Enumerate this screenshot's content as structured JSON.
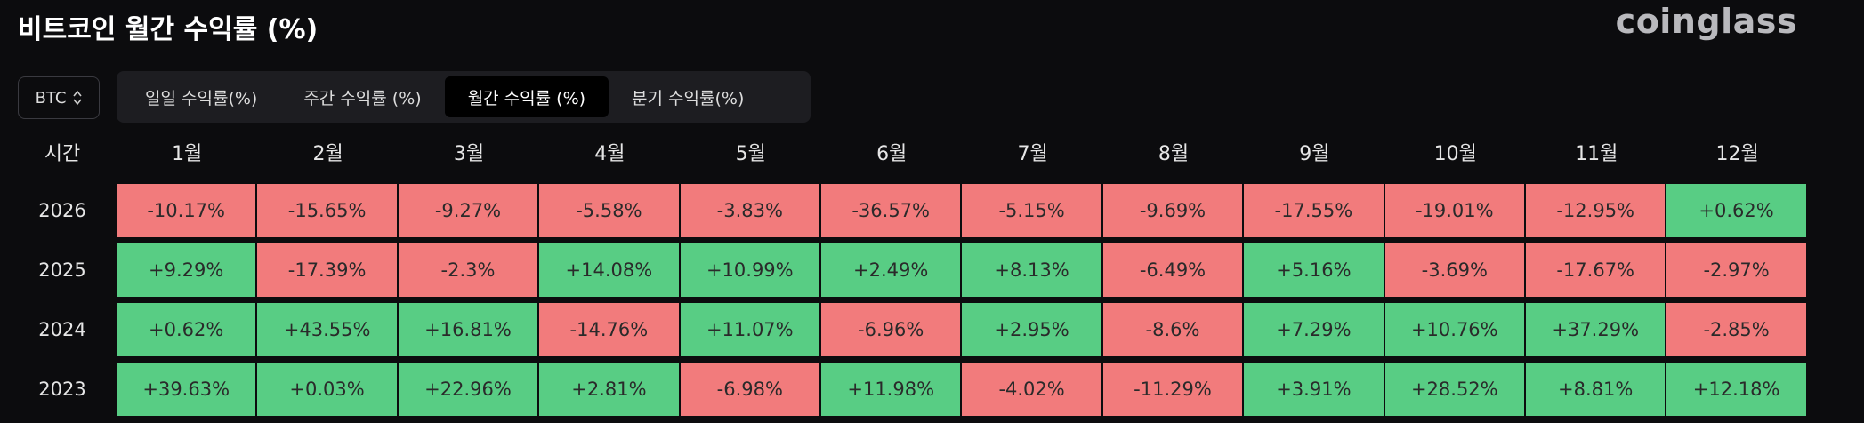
{
  "header": {
    "title": "비트코인 월간 수익률 (%)",
    "logo": "coinglass"
  },
  "selector": "BTC",
  "tabs": [
    "일일 수익률(%)",
    "주간 수익률 (%)",
    "월간 수익률 (%)",
    "분기 수익률(%)"
  ],
  "active_tab": 2,
  "table": {
    "columns": [
      "시간",
      "1월",
      "2월",
      "3월",
      "4월",
      "5월",
      "6월",
      "7월",
      "8월",
      "9월",
      "10월",
      "11월",
      "12월"
    ],
    "rows": [
      [
        "2026",
        "-10.17%",
        "-15.65%",
        "-9.27%",
        "-5.58%",
        "-3.83%",
        "-36.57%",
        "-5.15%",
        "-9.69%",
        "-17.55%",
        "-19.01%",
        "-12.95%",
        "+0.62%"
      ],
      [
        "2025",
        "+9.29%",
        "-17.39%",
        "-2.3%",
        "+14.08%",
        "+10.99%",
        "+2.49%",
        "+8.13%",
        "-6.49%",
        "+5.16%",
        "-3.69%",
        "-17.67%",
        "-2.97%"
      ],
      [
        "2024",
        "+0.62%",
        "+43.55%",
        "+16.81%",
        "-14.76%",
        "+11.07%",
        "-6.96%",
        "+2.95%",
        "-8.6%",
        "+7.29%",
        "+10.76%",
        "+37.29%",
        "-2.85%"
      ],
      [
        "2023",
        "+39.63%",
        "+0.03%",
        "+22.96%",
        "+2.81%",
        "-6.98%",
        "+11.98%",
        "-4.02%",
        "-11.29%",
        "+3.91%",
        "+28.52%",
        "+8.81%",
        "+12.18%"
      ]
    ]
  },
  "colors": {
    "negative": "#f27b7c",
    "positive": "#58cd84"
  }
}
